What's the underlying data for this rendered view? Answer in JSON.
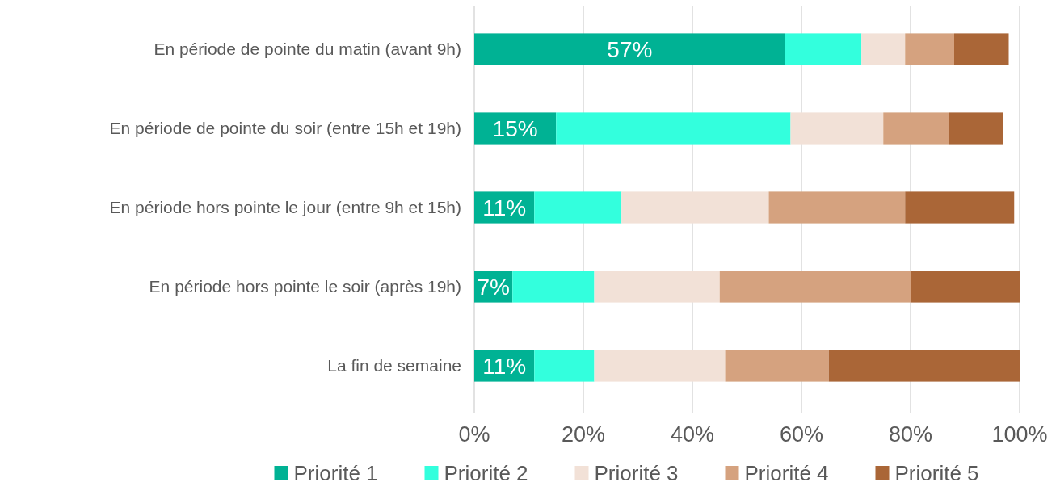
{
  "chart_data": {
    "type": "bar",
    "orientation": "horizontal",
    "stacked": true,
    "categories": [
      "En période de pointe du matin (avant 9h)",
      "En période de pointe du soir (entre 15h et 19h)",
      "En période hors pointe le jour (entre 9h et 15h)",
      "En période hors pointe le soir (après 19h)",
      "La fin de semaine"
    ],
    "series": [
      {
        "name": "Priorité 1",
        "color": "#00b294",
        "values": [
          57,
          15,
          11,
          7,
          11
        ],
        "value_labels": [
          "57%",
          "15%",
          "11%",
          "7%",
          "11%"
        ]
      },
      {
        "name": "Priorité 2",
        "color": "#33ffdd",
        "values": [
          14,
          43,
          16,
          15,
          11
        ]
      },
      {
        "name": "Priorité 3",
        "color": "#f2e1d7",
        "values": [
          8,
          17,
          27,
          23,
          24
        ]
      },
      {
        "name": "Priorité 4",
        "color": "#d5a27f",
        "values": [
          9,
          12,
          25,
          35,
          19
        ]
      },
      {
        "name": "Priorité 5",
        "color": "#aa6637",
        "values": [
          10,
          10,
          20,
          20,
          35
        ]
      }
    ],
    "xlim": [
      0,
      100
    ],
    "xticks": [
      {
        "value": 0,
        "label": "0%"
      },
      {
        "value": 20,
        "label": "20%"
      },
      {
        "value": 40,
        "label": "40%"
      },
      {
        "value": 60,
        "label": "60%"
      },
      {
        "value": 80,
        "label": "80%"
      },
      {
        "value": 100,
        "label": "100%"
      }
    ],
    "grid": "x",
    "legend": "bottom"
  }
}
